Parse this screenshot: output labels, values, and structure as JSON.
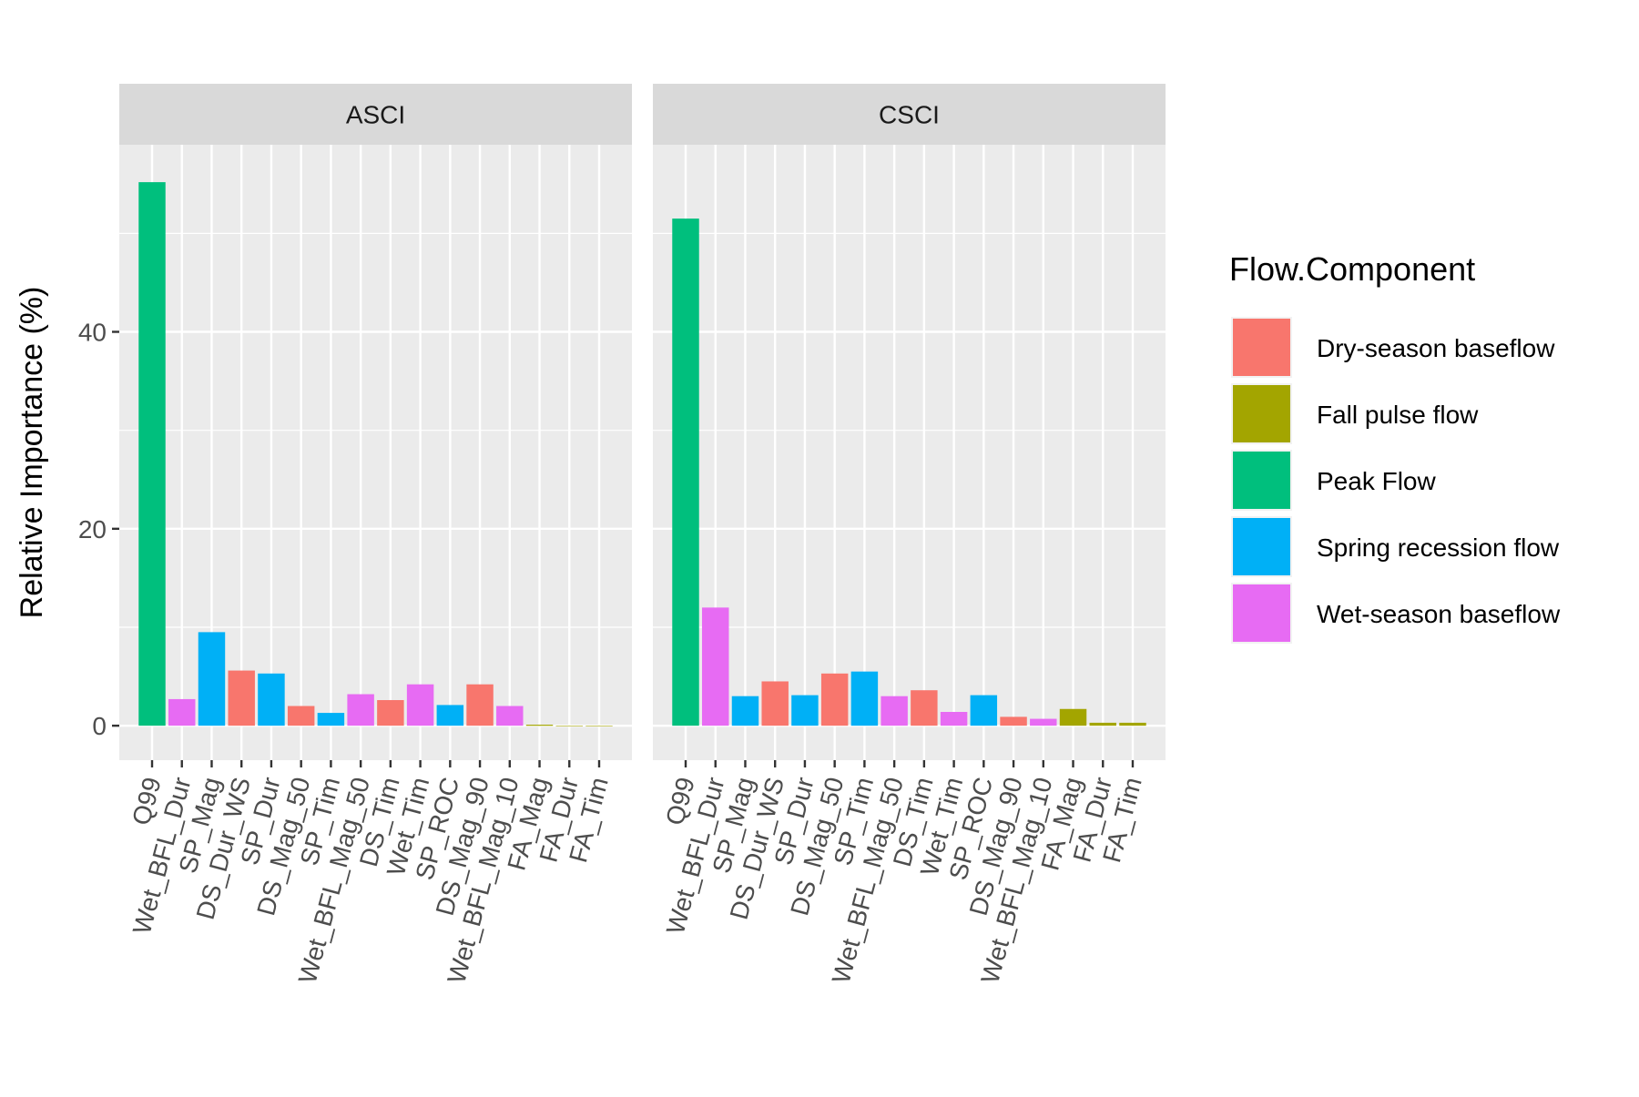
{
  "chart_data": {
    "type": "bar",
    "facet_type": "faceted",
    "ylabel": "Relative Importance (%)",
    "xlabel": "",
    "ylim": [
      -3.5,
      59
    ],
    "yticks": [
      0,
      20,
      40
    ],
    "grid": true,
    "legend": {
      "title": "Flow.Component",
      "placement": "right",
      "entries": [
        {
          "name": "Dry-season baseflow",
          "color": "#F8766D"
        },
        {
          "name": "Fall pulse flow",
          "color": "#A3A500"
        },
        {
          "name": "Peak Flow",
          "color": "#00BF7D"
        },
        {
          "name": "Spring recession flow",
          "color": "#00B0F6"
        },
        {
          "name": "Wet-season baseflow",
          "color": "#E76BF3"
        }
      ]
    },
    "categories": [
      "Q99",
      "Wet_BFL_Dur",
      "SP_Mag",
      "DS_Dur_WS",
      "SP_Dur",
      "DS_Mag_50",
      "SP_Tim",
      "Wet_BFL_Mag_50",
      "DS_Tim",
      "Wet_Tim",
      "SP_ROC",
      "DS_Mag_90",
      "Wet_BFL_Mag_10",
      "FA_Mag",
      "FA_Dur",
      "FA_Tim"
    ],
    "category_component": [
      "Peak Flow",
      "Wet-season baseflow",
      "Spring recession flow",
      "Dry-season baseflow",
      "Spring recession flow",
      "Dry-season baseflow",
      "Spring recession flow",
      "Wet-season baseflow",
      "Dry-season baseflow",
      "Wet-season baseflow",
      "Spring recession flow",
      "Dry-season baseflow",
      "Wet-season baseflow",
      "Fall pulse flow",
      "Fall pulse flow",
      "Fall pulse flow"
    ],
    "panels": [
      {
        "title": "ASCI",
        "values": [
          55.2,
          2.7,
          9.5,
          5.6,
          5.3,
          2.0,
          1.3,
          3.2,
          2.6,
          4.2,
          2.1,
          4.2,
          2.0,
          0.1,
          0.0,
          0.0
        ]
      },
      {
        "title": "CSCI",
        "values": [
          51.5,
          12.0,
          3.0,
          4.5,
          3.1,
          5.3,
          5.5,
          3.0,
          3.6,
          1.4,
          3.1,
          0.9,
          0.7,
          1.7,
          0.3,
          0.3
        ]
      }
    ]
  }
}
